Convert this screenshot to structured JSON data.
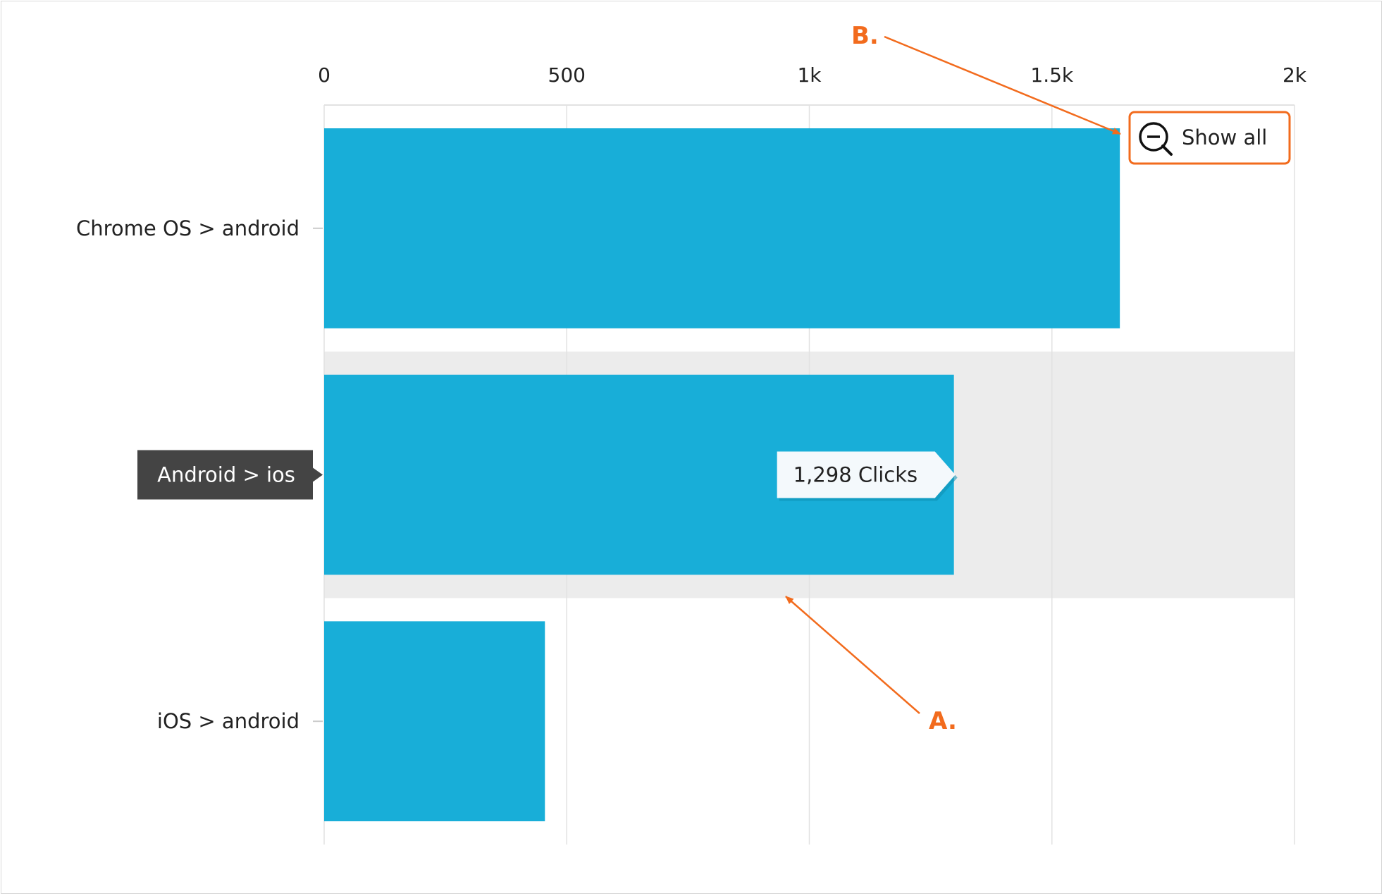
{
  "chart_data": {
    "type": "bar",
    "orientation": "horizontal",
    "categories": [
      "Chrome OS > android",
      "Android > ios",
      "iOS > android"
    ],
    "values": [
      1640,
      1298,
      455
    ],
    "xlim": [
      0,
      2000
    ],
    "x_ticks": [
      0,
      500,
      1000,
      1500,
      2000
    ],
    "x_tick_labels": [
      "0",
      "500",
      "1k",
      "1.5k",
      "2k"
    ],
    "axis_position": "top",
    "grid": true,
    "highlighted_category": "Android > ios",
    "tooltip": {
      "category": "Android > ios",
      "value": 1298,
      "text": "1,298 Clicks"
    },
    "bar_color": "#18aed8"
  },
  "zoom_button": {
    "label": "Show all",
    "icon": "zoom-out-icon"
  },
  "annotations": [
    {
      "id": "A",
      "label": "A."
    },
    {
      "id": "B",
      "label": "B."
    }
  ],
  "colors": {
    "annotation": "#f26b1d",
    "highlight_band": "#ececec",
    "gridline": "#e2e2e2",
    "active_label_bg": "#444444",
    "tooltip_bg": "#f4f9fc"
  }
}
